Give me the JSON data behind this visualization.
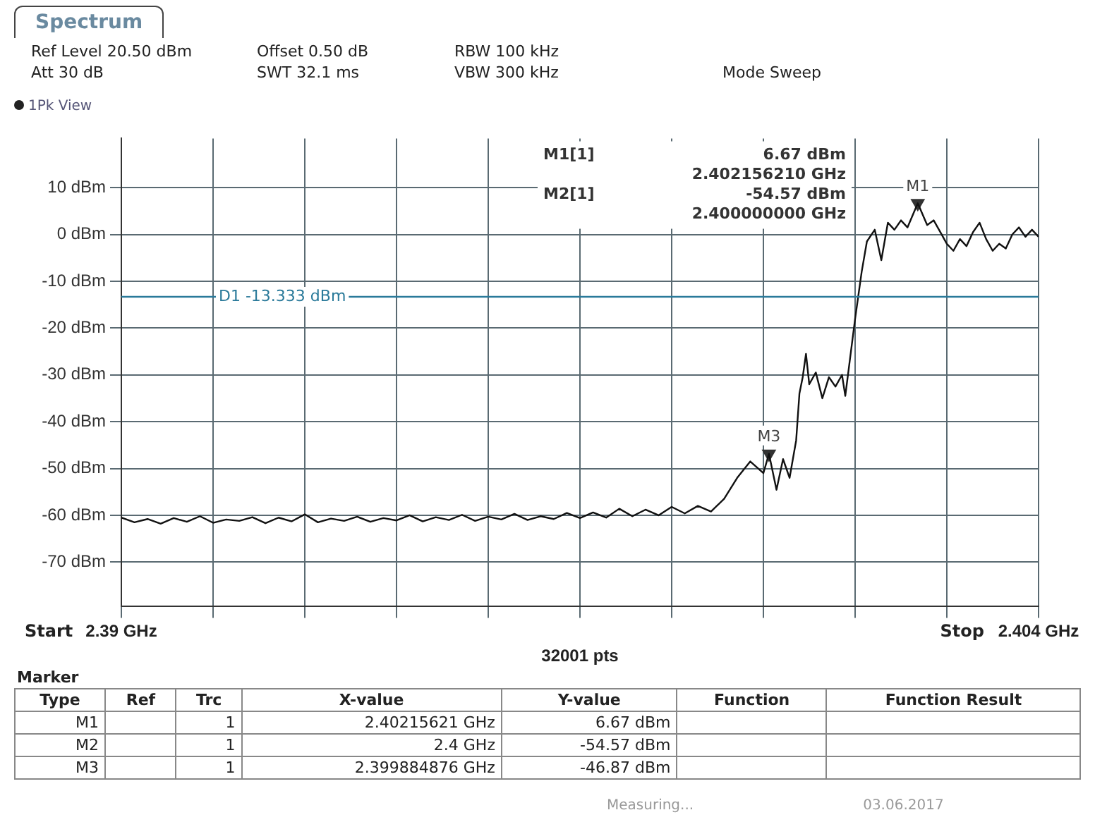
{
  "chart_data": {
    "type": "line",
    "title": "Spectrum",
    "xlabel": "32001 pts",
    "xlim": [
      2.39,
      2.404
    ],
    "xticks": [
      {
        "value": 2.39,
        "label": "2.39 GHz"
      },
      {
        "value": 2.3914,
        "label": null
      },
      {
        "value": 2.3928,
        "label": null
      },
      {
        "value": 2.3942,
        "label": null
      },
      {
        "value": 2.3956,
        "label": null
      },
      {
        "value": 2.397,
        "label": null
      },
      {
        "value": 2.3984,
        "label": null
      },
      {
        "value": 2.3998,
        "label": null
      },
      {
        "value": 2.4012,
        "label": null
      },
      {
        "value": 2.4026,
        "label": null
      },
      {
        "value": 2.404,
        "label": "2.404 GHz"
      }
    ],
    "ylim": [
      -79.5,
      20.5
    ],
    "yticks": [
      {
        "value": 10,
        "label": "10 dBm"
      },
      {
        "value": 0,
        "label": "0 dBm"
      },
      {
        "value": -10,
        "label": "-10 dBm"
      },
      {
        "value": -20,
        "label": "-20 dBm"
      },
      {
        "value": -30,
        "label": "-30 dBm"
      },
      {
        "value": -40,
        "label": "-40 dBm"
      },
      {
        "value": -50,
        "label": "-50 dBm"
      },
      {
        "value": -60,
        "label": "-60 dBm"
      },
      {
        "value": -70,
        "label": "-70 dBm"
      }
    ],
    "grid": true,
    "legend": false,
    "ref_lines": [
      {
        "axis": "y",
        "value": -13.333,
        "label": "D1 -13.333 dBm",
        "color": "#2a7a9a"
      }
    ],
    "series": [
      {
        "type": "line",
        "color": "#111111",
        "marker": "none",
        "x": [
          2.39,
          2.3902,
          2.3904,
          2.3906,
          2.3908,
          2.391,
          2.3912,
          2.3914,
          2.3916,
          2.3918,
          2.392,
          2.3922,
          2.3924,
          2.3926,
          2.3928,
          2.393,
          2.3932,
          2.3934,
          2.3936,
          2.3938,
          2.394,
          2.3942,
          2.3944,
          2.3946,
          2.3948,
          2.395,
          2.3952,
          2.3954,
          2.3956,
          2.3958,
          2.396,
          2.3962,
          2.3964,
          2.3966,
          2.3968,
          2.397,
          2.3972,
          2.3974,
          2.3976,
          2.3978,
          2.398,
          2.3982,
          2.3984,
          2.3986,
          2.3988,
          2.399,
          2.3992,
          2.3994,
          2.3996,
          2.3998,
          2.399884876,
          2.4,
          2.4001,
          2.4002,
          2.4003,
          2.40035,
          2.4004,
          2.40045,
          2.4005,
          2.4006,
          2.4007,
          2.4008,
          2.4009,
          2.401,
          2.40105,
          2.4011,
          2.4012,
          2.4013,
          2.40138,
          2.4015,
          2.4016,
          2.4017,
          2.4018,
          2.4019,
          2.402,
          2.40215621,
          2.4023,
          2.4024,
          2.4025,
          2.4026,
          2.4027,
          2.4028,
          2.4029,
          2.403,
          2.4031,
          2.4032,
          2.4033,
          2.4034,
          2.4035,
          2.4036,
          2.4037,
          2.4038,
          2.4039,
          2.404
        ],
        "values": [
          -60.5,
          -61.5,
          -60.8,
          -61.8,
          -60.6,
          -61.4,
          -60.2,
          -61.6,
          -60.9,
          -61.2,
          -60.4,
          -61.7,
          -60.5,
          -61.3,
          -59.8,
          -61.5,
          -60.7,
          -61.2,
          -60.3,
          -61.4,
          -60.6,
          -61.1,
          -60.0,
          -61.3,
          -60.4,
          -61.0,
          -59.9,
          -61.2,
          -60.3,
          -60.9,
          -59.7,
          -61.0,
          -60.2,
          -60.8,
          -59.5,
          -60.6,
          -59.4,
          -60.5,
          -58.6,
          -60.2,
          -58.8,
          -60.0,
          -58.2,
          -59.6,
          -58.0,
          -59.2,
          -56.5,
          -52.0,
          -48.5,
          -51.0,
          -46.87,
          -54.57,
          -48.0,
          -52.0,
          -44.0,
          -34.0,
          -30.5,
          -25.5,
          -32.0,
          -29.5,
          -35.0,
          -30.5,
          -32.5,
          -30.0,
          -34.5,
          -29.0,
          -18.0,
          -8.0,
          -1.5,
          1.0,
          -5.5,
          2.5,
          1.0,
          3.0,
          1.5,
          6.67,
          2.0,
          3.0,
          0.5,
          -2.0,
          -3.5,
          -1.0,
          -2.5,
          0.5,
          2.5,
          -1.0,
          -3.5,
          -2.0,
          -3.0,
          0.0,
          1.5,
          -0.5,
          1.0,
          -0.5
        ]
      },
      {
        "type": "scatter",
        "color": "#333333",
        "marker": "triangle",
        "x": [
          2.40215621,
          2.399884876
        ],
        "values": [
          6.67,
          -46.87
        ],
        "value_labels": [
          "M1",
          "M3"
        ]
      }
    ],
    "annotations": [
      "Ref Level 20.50 dBm",
      "Att 30 dB",
      "Offset 0.50 dB",
      "SWT 32.1 ms",
      "RBW 100 kHz",
      "VBW 300 kHz",
      "Mode Sweep",
      "1Pk View",
      "M1[1]",
      "6.67 dBm",
      "2.402156210 GHz",
      "M2[1]",
      "-54.57 dBm",
      "2.400000000 GHz",
      "Marker",
      "Type",
      "Ref",
      "Trc",
      "X-value",
      "Y-value",
      "Function",
      "Function Result",
      "M1",
      "1",
      "2.40215621 GHz",
      "6.67 dBm",
      "M2",
      "1",
      "2.4 GHz",
      "-54.57 dBm",
      "M3",
      "1",
      "2.399884876 GHz",
      "-46.87 dBm",
      "Measuring...",
      "03.06.2017",
      "Start",
      "Stop"
    ]
  }
}
